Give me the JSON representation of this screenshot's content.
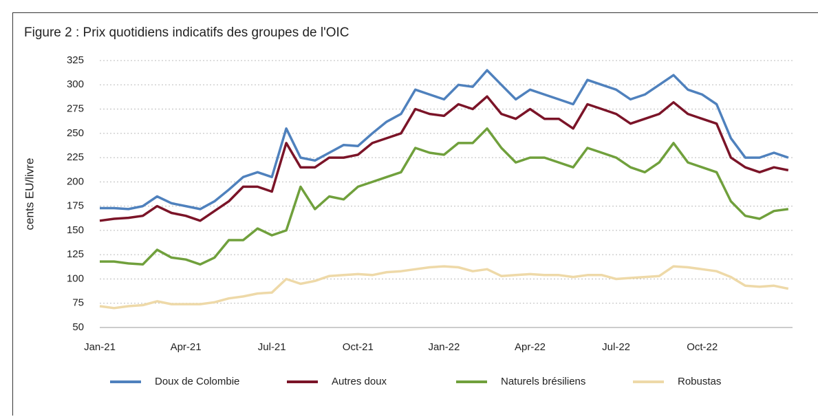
{
  "chart_data": {
    "type": "line",
    "title": "Figure 2 : Prix quotidiens indicatifs des groupes de l'OIC",
    "y_label": "cents EU/livre",
    "categories": [
      "Jan-21",
      null,
      null,
      null,
      null,
      null,
      "Apr-21",
      null,
      null,
      null,
      null,
      null,
      "Jul-21",
      null,
      null,
      null,
      null,
      null,
      "Oct-21",
      null,
      null,
      null,
      null,
      null,
      "Jan-22",
      null,
      null,
      null,
      null,
      null,
      "Apr-22",
      null,
      null,
      null,
      null,
      null,
      "Jul-22",
      null,
      null,
      null,
      null,
      null,
      "Oct-22",
      null,
      null,
      null,
      null,
      null,
      null
    ],
    "series": [
      {
        "name": "Doux de Colombie",
        "color": "#4f81bd",
        "values": [
          173,
          173,
          172,
          175,
          185,
          178,
          175,
          172,
          180,
          192,
          205,
          210,
          205,
          255,
          225,
          222,
          230,
          238,
          237,
          250,
          262,
          270,
          295,
          290,
          285,
          300,
          298,
          315,
          300,
          285,
          295,
          290,
          285,
          280,
          305,
          300,
          295,
          285,
          290,
          300,
          310,
          295,
          290,
          280,
          245,
          225,
          225,
          230,
          225
        ]
      },
      {
        "name": "Autres doux",
        "color": "#7b1428",
        "values": [
          160,
          162,
          163,
          165,
          175,
          168,
          165,
          160,
          170,
          180,
          195,
          195,
          190,
          240,
          215,
          215,
          225,
          225,
          228,
          240,
          245,
          250,
          275,
          270,
          268,
          280,
          275,
          288,
          270,
          265,
          275,
          265,
          265,
          255,
          280,
          275,
          270,
          260,
          265,
          270,
          282,
          270,
          265,
          260,
          225,
          215,
          210,
          215,
          212
        ]
      },
      {
        "name": "Naturels brésiliens",
        "color": "#70a03c",
        "values": [
          118,
          118,
          116,
          115,
          130,
          122,
          120,
          115,
          122,
          140,
          140,
          152,
          145,
          150,
          195,
          172,
          185,
          182,
          195,
          200,
          205,
          210,
          235,
          230,
          228,
          240,
          240,
          255,
          235,
          220,
          225,
          225,
          220,
          215,
          235,
          230,
          225,
          215,
          210,
          220,
          240,
          220,
          215,
          210,
          180,
          165,
          162,
          170,
          172
        ]
      },
      {
        "name": "Robustas",
        "color": "#eed9a8",
        "values": [
          72,
          70,
          72,
          73,
          77,
          74,
          74,
          74,
          76,
          80,
          82,
          85,
          86,
          100,
          95,
          98,
          103,
          104,
          105,
          104,
          107,
          108,
          110,
          112,
          113,
          112,
          108,
          110,
          103,
          104,
          105,
          104,
          104,
          102,
          104,
          104,
          100,
          101,
          102,
          103,
          113,
          112,
          110,
          108,
          102,
          93,
          92,
          93,
          90
        ]
      }
    ],
    "ylim": [
      50,
      325
    ],
    "yticks": [
      50,
      75,
      100,
      125,
      150,
      175,
      200,
      225,
      250,
      275,
      300,
      325
    ],
    "grid": true,
    "legend": "bottom"
  }
}
